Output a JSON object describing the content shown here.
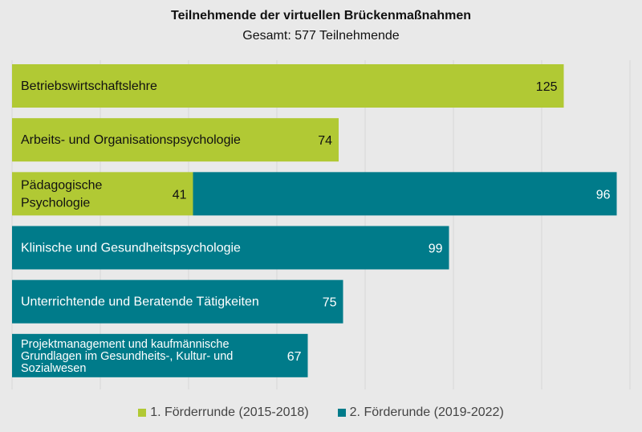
{
  "chart_data": {
    "type": "bar",
    "orientation": "horizontal",
    "stacked": true,
    "title": "Teilnehmende der virtuellen Brückenmaßnahmen",
    "subtitle": "Gesamt: 577 Teilnehmende",
    "categories": [
      [
        "Betriebswirtschaftslehre"
      ],
      [
        "Arbeits- und Organisationspsychologie"
      ],
      [
        "Pädagogische",
        "Psychologie"
      ],
      [
        "Klinische und Gesundheitspsychologie"
      ],
      [
        "Unterrichtende und Beratende Tätigkeiten"
      ],
      [
        "Projektmanagement und kaufmännische",
        "Grundlagen im Gesundheits-, Kultur- und",
        "Sozialwesen"
      ]
    ],
    "series": [
      {
        "name": "1. Förderrunde (2015-2018)",
        "color": "#b1c934",
        "values": [
          125,
          74,
          41,
          null,
          null,
          null
        ]
      },
      {
        "name": "2. Förderunde (2019-2022)",
        "color": "#007b8a",
        "values": [
          null,
          null,
          96,
          99,
          75,
          67
        ]
      }
    ],
    "xlim": [
      0,
      140
    ],
    "grid_step": 20,
    "grid": true,
    "legend_placement": "bottom"
  }
}
